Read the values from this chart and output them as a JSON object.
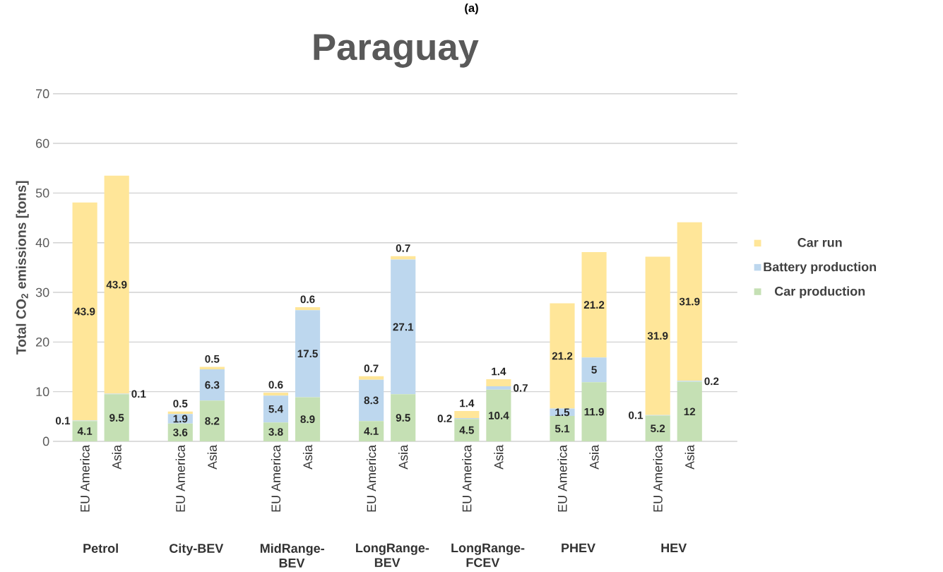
{
  "chart_data": {
    "type": "bar",
    "title": "Paraguay",
    "subtitle": "(a)",
    "ylabel": "Total CO$_{2}$ emissions [tons]",
    "categories": [
      "EU America",
      "Asia",
      "EU America",
      "Asia",
      "EU America",
      "Asia",
      "EU America",
      "Asia",
      "EU America",
      "Asia",
      "EU America",
      "Asia",
      "EU America",
      "Asia"
    ],
    "annotations": [
      "Petrol",
      "City-BEV",
      "MidRange-BEV",
      "LongRange-BEV",
      "LongRange-FCEV",
      "PHEV",
      "HEV"
    ],
    "stacked": true,
    "ylim": [
      0,
      70
    ],
    "yticks": [
      0,
      10,
      20,
      30,
      40,
      50,
      60,
      70
    ],
    "grid": "y",
    "legend": "right",
    "data_labels": true,
    "series": [
      {
        "name": "Car production",
        "color": "#c5e0b4",
        "values": [
          4.1,
          9.5,
          3.6,
          8.2,
          3.8,
          8.9,
          4.1,
          9.5,
          4.5,
          10.4,
          5.1,
          11.9,
          5.2,
          12
        ]
      },
      {
        "name": "Battery production",
        "color": "#bdd7ee",
        "values": [
          0.1,
          0.1,
          1.9,
          6.3,
          5.4,
          17.5,
          8.3,
          27.1,
          0.2,
          0.7,
          1.5,
          5,
          0.1,
          0.2
        ]
      },
      {
        "name": "Car run",
        "color": "#ffe699",
        "values": [
          43.9,
          43.9,
          0.5,
          0.5,
          0.6,
          0.6,
          0.7,
          0.7,
          1.4,
          1.4,
          21.2,
          21.2,
          31.9,
          31.9
        ]
      }
    ]
  }
}
